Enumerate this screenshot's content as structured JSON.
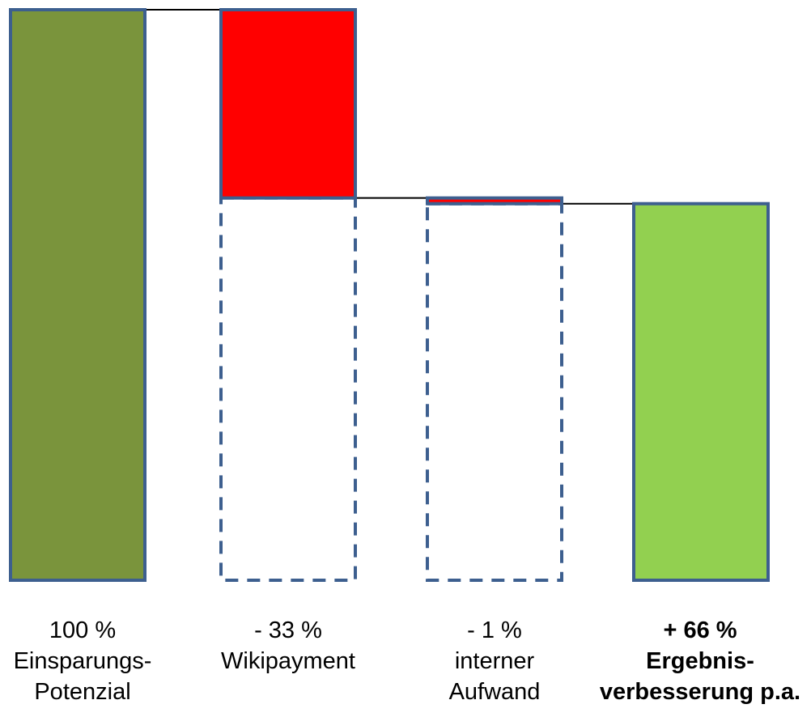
{
  "chart_data": {
    "type": "waterfall",
    "title": "",
    "xlabel": "",
    "ylabel": "",
    "ylim": [
      0,
      100
    ],
    "grid": false,
    "legend": "none",
    "categories": [
      {
        "value_label": "100 %",
        "name_lines": [
          "Einsparungs-",
          "Potenzial"
        ]
      },
      {
        "value_label": "- 33 %",
        "name_lines": [
          "Wikipayment"
        ]
      },
      {
        "value_label": "- 1 %",
        "name_lines": [
          "interner",
          "Aufwand"
        ]
      },
      {
        "value_label": "+ 66 %",
        "name_lines": [
          "Ergebnis-",
          "verbesserung p.a."
        ]
      }
    ],
    "values": [
      100,
      -33,
      -1,
      66
    ],
    "bar_kinds": [
      "total",
      "decrease",
      "decrease",
      "result"
    ],
    "colors": {
      "total": "#7a943c",
      "decrease": "#ff0000",
      "result": "#92d050",
      "outline": "#3d5f8f",
      "connector": "#000000"
    }
  }
}
